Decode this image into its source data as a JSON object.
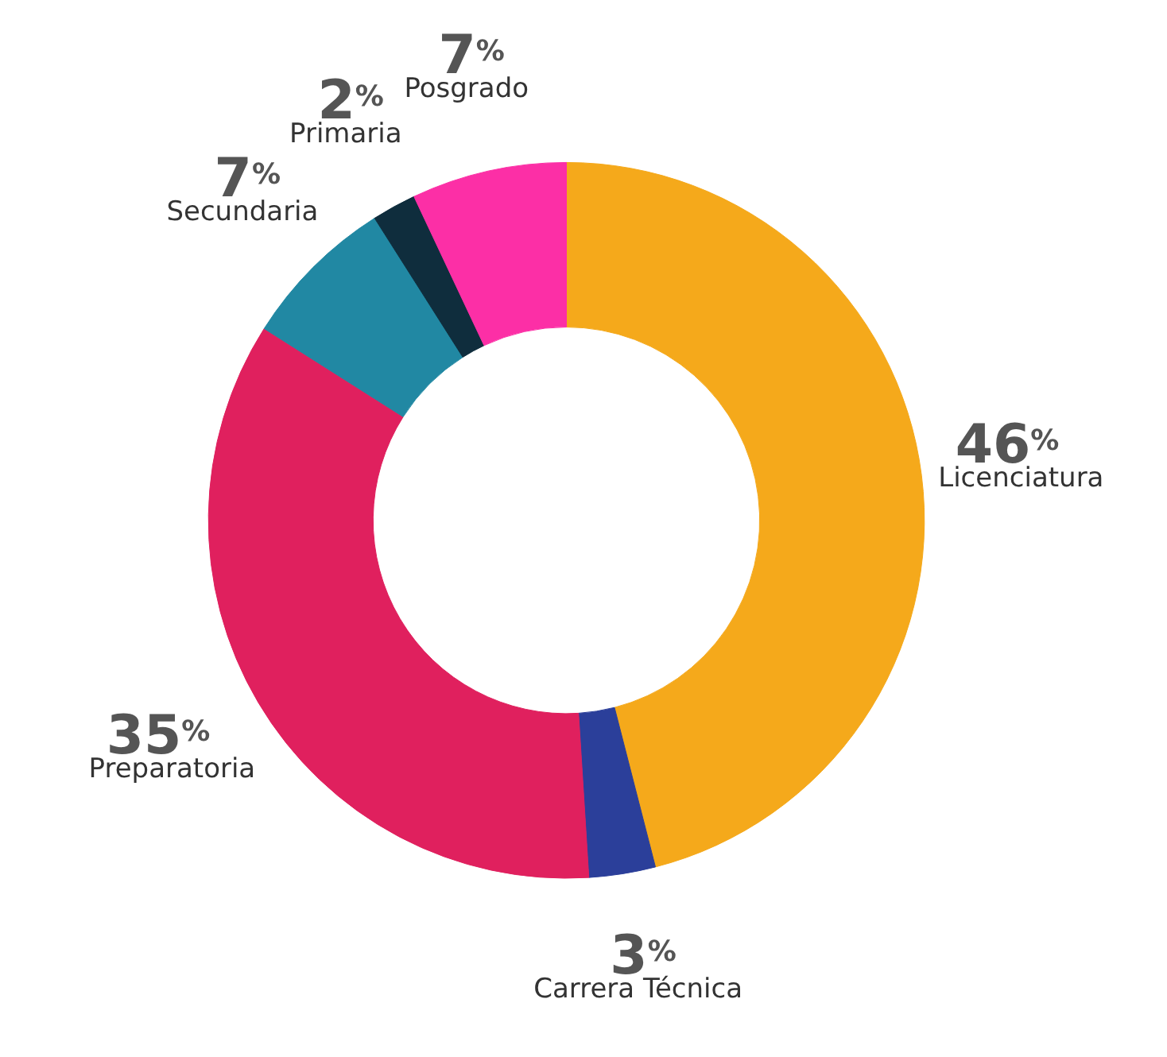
{
  "chart_data": {
    "type": "donut",
    "categories": [
      "Licenciatura",
      "Carrera Técnica",
      "Preparatoria",
      "Secundaria",
      "Primaria",
      "Posgrado"
    ],
    "values": [
      46,
      3,
      35,
      7,
      2,
      7
    ],
    "colors": [
      "#f5a91b",
      "#2b3f9a",
      "#e0205e",
      "#2188a3",
      "#0f2d3d",
      "#fc2fa6"
    ],
    "value_labels": [
      "46%",
      "3%",
      "35%",
      "7%",
      "2%",
      "7%"
    ]
  }
}
